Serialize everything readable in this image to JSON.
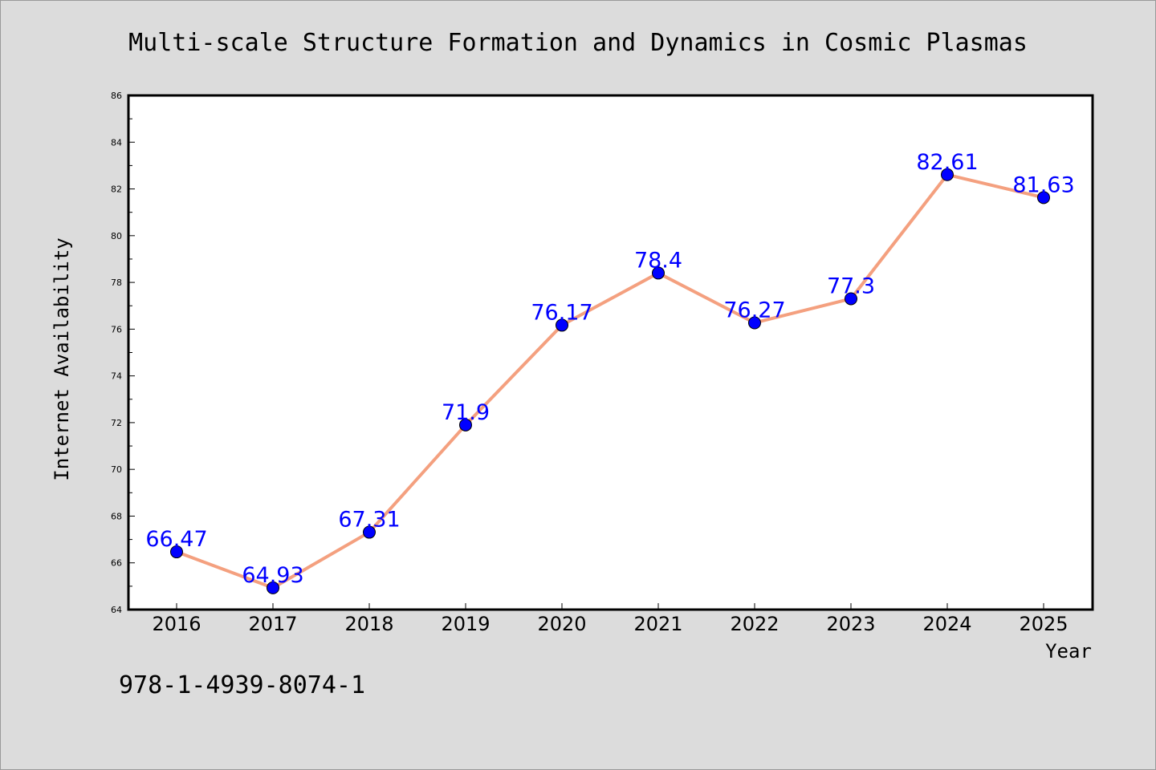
{
  "chart_data": {
    "type": "line",
    "title": "Multi-scale Structure Formation and Dynamics in Cosmic Plasmas",
    "xlabel": "Year",
    "ylabel": "Internet Availability",
    "categories": [
      "2016",
      "2017",
      "2018",
      "2019",
      "2020",
      "2021",
      "2022",
      "2023",
      "2024",
      "2025"
    ],
    "values": [
      66.47,
      64.93,
      67.31,
      71.9,
      76.17,
      78.4,
      76.27,
      77.3,
      82.61,
      81.63
    ],
    "data_labels": [
      "66.47",
      "64.93",
      "67.31",
      "71.9",
      "76.17",
      "78.4",
      "76.27",
      "77.3",
      "82.61",
      "81.63"
    ],
    "ylim": [
      64,
      86
    ],
    "yticks": [
      "64",
      "66",
      "68",
      "70",
      "72",
      "74",
      "76",
      "78",
      "80",
      "82",
      "84",
      "86"
    ],
    "grid": false,
    "line_color": "#f4a07f",
    "marker_color": "#0000ff",
    "label_color": "#0000ff",
    "background_color": "#dcdcdc",
    "plot_background_color": "#ffffff"
  },
  "footer": {
    "identifier": "978-1-4939-8074-1"
  }
}
